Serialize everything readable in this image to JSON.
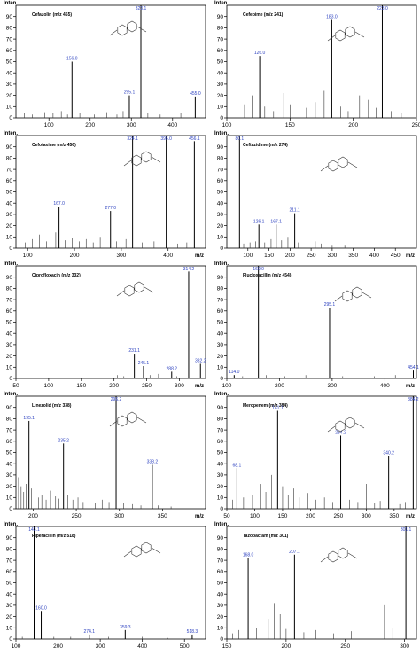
{
  "chart_data": [
    {
      "type": "bar",
      "title": "Cefazolin (m/z 455)",
      "ylabel": "Inten.",
      "xlabel": "",
      "xlim": [
        20,
        480
      ],
      "ylim": [
        0,
        100
      ],
      "xticks": [
        100,
        200,
        300,
        400
      ],
      "yticks": [
        0,
        10,
        20,
        30,
        40,
        50,
        60,
        70,
        80,
        90
      ],
      "peaks": [
        {
          "mz": 156.0,
          "intensity": 50,
          "label": "156.0"
        },
        {
          "mz": 295.1,
          "intensity": 20,
          "label": "295.1"
        },
        {
          "mz": 323.1,
          "intensity": 100,
          "label": "323.1"
        },
        {
          "mz": 455.0,
          "intensity": 19,
          "label": "455.0"
        }
      ],
      "minor_peaks": [
        [
          40,
          4
        ],
        [
          60,
          3
        ],
        [
          90,
          5
        ],
        [
          110,
          4
        ],
        [
          130,
          6
        ],
        [
          145,
          3
        ],
        [
          175,
          4
        ],
        [
          210,
          3
        ],
        [
          240,
          5
        ],
        [
          265,
          3
        ],
        [
          280,
          6
        ],
        [
          340,
          4
        ],
        [
          370,
          3
        ],
        [
          420,
          4
        ]
      ]
    },
    {
      "type": "bar",
      "title": "Cefepime (m/z 241)",
      "ylabel": "Inten.",
      "xlabel": "",
      "xlim": [
        100,
        250
      ],
      "ylim": [
        0,
        100
      ],
      "xticks": [
        100,
        150,
        200,
        250
      ],
      "yticks": [
        0,
        10,
        20,
        30,
        40,
        50,
        60,
        70,
        80,
        90
      ],
      "peaks": [
        {
          "mz": 126.0,
          "intensity": 55,
          "label": "126.0"
        },
        {
          "mz": 183.0,
          "intensity": 87,
          "label": "183.0"
        },
        {
          "mz": 223.0,
          "intensity": 100,
          "label": "223.0"
        }
      ],
      "minor_peaks": [
        [
          108,
          8
        ],
        [
          114,
          12
        ],
        [
          120,
          20
        ],
        [
          130,
          10
        ],
        [
          137,
          6
        ],
        [
          145,
          22
        ],
        [
          150,
          12
        ],
        [
          157,
          18
        ],
        [
          163,
          9
        ],
        [
          170,
          14
        ],
        [
          177,
          24
        ],
        [
          190,
          10
        ],
        [
          196,
          6
        ],
        [
          205,
          20
        ],
        [
          212,
          16
        ],
        [
          218,
          9
        ],
        [
          230,
          6
        ],
        [
          238,
          4
        ]
      ]
    },
    {
      "type": "bar",
      "title": "Cefotaxime (m/z 456)",
      "ylabel": "Inten.",
      "xlabel": "m/z",
      "xlim": [
        75,
        480
      ],
      "ylim": [
        0,
        100
      ],
      "xticks": [
        100,
        200,
        300,
        400
      ],
      "yticks": [
        0,
        10,
        20,
        30,
        40,
        50,
        60,
        70,
        80,
        90
      ],
      "peaks": [
        {
          "mz": 167.0,
          "intensity": 37,
          "label": "167.0"
        },
        {
          "mz": 277.0,
          "intensity": 33,
          "label": "277.0"
        },
        {
          "mz": 324.1,
          "intensity": 100,
          "label": "324.1"
        },
        {
          "mz": 396.0,
          "intensity": 100,
          "label": "396.0"
        },
        {
          "mz": 456.1,
          "intensity": 95,
          "label": "456.1"
        }
      ],
      "minor_peaks": [
        [
          95,
          5
        ],
        [
          110,
          8
        ],
        [
          125,
          12
        ],
        [
          140,
          6
        ],
        [
          150,
          10
        ],
        [
          160,
          14
        ],
        [
          180,
          7
        ],
        [
          195,
          9
        ],
        [
          210,
          6
        ],
        [
          225,
          8
        ],
        [
          240,
          5
        ],
        [
          255,
          10
        ],
        [
          290,
          6
        ],
        [
          310,
          8
        ],
        [
          345,
          5
        ],
        [
          370,
          6
        ],
        [
          420,
          4
        ],
        [
          440,
          5
        ]
      ]
    },
    {
      "type": "bar",
      "title": "Ceftazidime (m/z 274)",
      "ylabel": "Inten.",
      "xlabel": "m/z",
      "xlim": [
        50,
        500
      ],
      "ylim": [
        0,
        100
      ],
      "xticks": [
        100,
        150,
        200,
        250,
        300,
        350,
        400,
        450
      ],
      "yticks": [
        0,
        10,
        20,
        30,
        40,
        50,
        60,
        70,
        80,
        90
      ],
      "peaks": [
        {
          "mz": 80.1,
          "intensity": 100,
          "label": "80.1"
        },
        {
          "mz": 126.1,
          "intensity": 21,
          "label": "126.1"
        },
        {
          "mz": 167.1,
          "intensity": 21,
          "label": "167.1"
        },
        {
          "mz": 211.1,
          "intensity": 31,
          "label": "211.1"
        }
      ],
      "minor_peaks": [
        [
          90,
          4
        ],
        [
          105,
          5
        ],
        [
          118,
          6
        ],
        [
          140,
          5
        ],
        [
          155,
          8
        ],
        [
          180,
          7
        ],
        [
          195,
          10
        ],
        [
          220,
          5
        ],
        [
          240,
          4
        ],
        [
          260,
          6
        ],
        [
          274,
          4
        ],
        [
          300,
          3
        ],
        [
          330,
          3
        ]
      ]
    },
    {
      "type": "bar",
      "title": "Ciprofloxacin (m/z 332)",
      "ylabel": "Inten.",
      "xlabel": "m/z",
      "xlim": [
        50,
        340
      ],
      "ylim": [
        0,
        100
      ],
      "xticks": [
        50,
        100,
        150,
        200,
        250,
        300
      ],
      "yticks": [
        0,
        10,
        20,
        30,
        40,
        50,
        60,
        70,
        80,
        90
      ],
      "peaks": [
        {
          "mz": 231.1,
          "intensity": 22,
          "label": "231.1"
        },
        {
          "mz": 245.1,
          "intensity": 11,
          "label": "245.1"
        },
        {
          "mz": 288.2,
          "intensity": 6,
          "label": "288.2"
        },
        {
          "mz": 314.2,
          "intensity": 95,
          "label": "314.2"
        },
        {
          "mz": 332.2,
          "intensity": 13,
          "label": "332.2"
        }
      ],
      "minor_peaks": [
        [
          205,
          3
        ],
        [
          215,
          2
        ],
        [
          255,
          3
        ],
        [
          268,
          4
        ],
        [
          296,
          2
        ]
      ]
    },
    {
      "type": "bar",
      "title": "Flucloxacillin (m/z 454)",
      "ylabel": "Inten.",
      "xlabel": "m/z",
      "xlim": [
        100,
        460
      ],
      "ylim": [
        0,
        100
      ],
      "xticks": [
        100,
        200,
        300,
        400
      ],
      "yticks": [
        0,
        10,
        20,
        30,
        40,
        50,
        60,
        70,
        80,
        90
      ],
      "peaks": [
        {
          "mz": 114.0,
          "intensity": 3,
          "label": "114.0"
        },
        {
          "mz": 160.0,
          "intensity": 100,
          "label": "160.0"
        },
        {
          "mz": 295.1,
          "intensity": 63,
          "label": "295.1"
        },
        {
          "mz": 454.1,
          "intensity": 7,
          "label": "454.1"
        }
      ],
      "minor_peaks": [
        [
          130,
          2
        ],
        [
          175,
          3
        ],
        [
          210,
          2
        ],
        [
          250,
          3
        ],
        [
          320,
          2
        ],
        [
          380,
          2
        ],
        [
          420,
          3
        ]
      ]
    },
    {
      "type": "bar",
      "title": "Linezolid (m/z 338)",
      "ylabel": "Inten.",
      "xlabel": "m/z",
      "xlim": [
        180,
        400
      ],
      "ylim": [
        0,
        100
      ],
      "xticks": [
        200,
        250,
        300,
        350
      ],
      "yticks": [
        0,
        10,
        20,
        30,
        40,
        50,
        60,
        70,
        80,
        90
      ],
      "peaks": [
        {
          "mz": 195.1,
          "intensity": 78,
          "label": "195.1"
        },
        {
          "mz": 235.2,
          "intensity": 58,
          "label": "235.2"
        },
        {
          "mz": 296.2,
          "intensity": 100,
          "label": "296.2"
        },
        {
          "mz": 338.2,
          "intensity": 39,
          "label": "338.2"
        }
      ],
      "minor_peaks": [
        [
          183,
          28
        ],
        [
          186,
          20
        ],
        [
          189,
          15
        ],
        [
          192,
          22
        ],
        [
          198,
          18
        ],
        [
          202,
          14
        ],
        [
          206,
          10
        ],
        [
          210,
          12
        ],
        [
          215,
          8
        ],
        [
          220,
          16
        ],
        [
          226,
          11
        ],
        [
          230,
          9
        ],
        [
          240,
          12
        ],
        [
          246,
          8
        ],
        [
          252,
          10
        ],
        [
          258,
          6
        ],
        [
          265,
          7
        ],
        [
          272,
          5
        ],
        [
          280,
          8
        ],
        [
          288,
          6
        ],
        [
          305,
          5
        ],
        [
          315,
          4
        ],
        [
          325,
          3
        ],
        [
          345,
          3
        ],
        [
          360,
          2
        ]
      ]
    },
    {
      "type": "bar",
      "title": "Meropenem (m/z 384)",
      "ylabel": "Inten.",
      "xlabel": "m/z",
      "xlim": [
        50,
        390
      ],
      "ylim": [
        0,
        100
      ],
      "xticks": [
        50,
        100,
        150,
        200,
        250,
        300,
        350
      ],
      "yticks": [
        0,
        10,
        20,
        30,
        40,
        50,
        60,
        70,
        80,
        90
      ],
      "peaks": [
        {
          "mz": 68.1,
          "intensity": 36,
          "label": "68.1"
        },
        {
          "mz": 141.1,
          "intensity": 87,
          "label": "141.1"
        },
        {
          "mz": 254.2,
          "intensity": 65,
          "label": "254.2"
        },
        {
          "mz": 340.2,
          "intensity": 47,
          "label": "340.2"
        },
        {
          "mz": 384.2,
          "intensity": 100,
          "label": "384.2"
        }
      ],
      "minor_peaks": [
        [
          60,
          8
        ],
        [
          80,
          10
        ],
        [
          96,
          12
        ],
        [
          110,
          22
        ],
        [
          120,
          15
        ],
        [
          130,
          30
        ],
        [
          150,
          20
        ],
        [
          160,
          12
        ],
        [
          170,
          18
        ],
        [
          180,
          10
        ],
        [
          195,
          14
        ],
        [
          210,
          8
        ],
        [
          225,
          10
        ],
        [
          240,
          6
        ],
        [
          270,
          8
        ],
        [
          285,
          6
        ],
        [
          300,
          22
        ],
        [
          315,
          5
        ],
        [
          325,
          7
        ],
        [
          360,
          4
        ],
        [
          370,
          6
        ]
      ]
    },
    {
      "type": "bar",
      "title": "Piperacillin (m/z 518)",
      "ylabel": "Inten.",
      "xlabel": "",
      "xlim": [
        100,
        550
      ],
      "ylim": [
        0,
        100
      ],
      "xticks": [
        100,
        200,
        300,
        400,
        500
      ],
      "yticks": [
        0,
        10,
        20,
        30,
        40,
        50,
        60,
        70,
        80,
        90
      ],
      "peaks": [
        {
          "mz": 143.1,
          "intensity": 100,
          "label": "143.1"
        },
        {
          "mz": 160.0,
          "intensity": 25,
          "label": "160.0"
        },
        {
          "mz": 274.1,
          "intensity": 4,
          "label": "274.1"
        },
        {
          "mz": 359.3,
          "intensity": 8,
          "label": "359.3"
        },
        {
          "mz": 518.3,
          "intensity": 4,
          "label": "518.3"
        }
      ],
      "minor_peaks": [
        [
          115,
          2
        ],
        [
          190,
          2
        ],
        [
          230,
          2
        ],
        [
          320,
          2
        ],
        [
          400,
          2
        ],
        [
          460,
          1
        ]
      ]
    },
    {
      "type": "bar",
      "title": "Tazobactam (m/z 301)",
      "ylabel": "Inten.",
      "xlabel": "",
      "xlim": [
        150,
        310
      ],
      "ylim": [
        0,
        100
      ],
      "xticks": [
        150,
        200,
        250,
        300
      ],
      "yticks": [
        0,
        10,
        20,
        30,
        40,
        50,
        60,
        70,
        80,
        90
      ],
      "peaks": [
        {
          "mz": 168.0,
          "intensity": 72,
          "label": "168.0"
        },
        {
          "mz": 207.1,
          "intensity": 75,
          "label": "207.1"
        },
        {
          "mz": 301.1,
          "intensity": 100,
          "label": "301.1"
        }
      ],
      "minor_peaks": [
        [
          155,
          5
        ],
        [
          160,
          8
        ],
        [
          175,
          10
        ],
        [
          185,
          18
        ],
        [
          190,
          32
        ],
        [
          195,
          22
        ],
        [
          200,
          9
        ],
        [
          215,
          6
        ],
        [
          225,
          8
        ],
        [
          240,
          5
        ],
        [
          255,
          7
        ],
        [
          270,
          6
        ],
        [
          283,
          30
        ],
        [
          290,
          10
        ]
      ]
    }
  ]
}
